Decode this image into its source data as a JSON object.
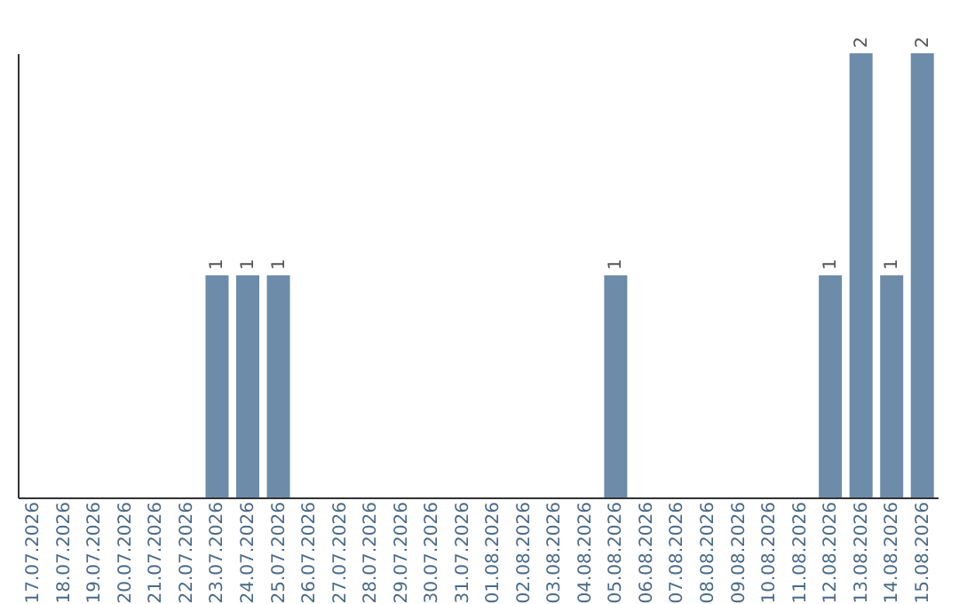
{
  "chart_data": {
    "type": "bar",
    "categories": [
      "17.07.2026",
      "18.07.2026",
      "19.07.2026",
      "20.07.2026",
      "21.07.2026",
      "22.07.2026",
      "23.07.2026",
      "24.07.2026",
      "25.07.2026",
      "26.07.2026",
      "27.07.2026",
      "28.07.2026",
      "29.07.2026",
      "30.07.2026",
      "31.07.2026",
      "01.08.2026",
      "02.08.2026",
      "03.08.2026",
      "04.08.2026",
      "05.08.2026",
      "06.08.2026",
      "07.08.2026",
      "08.08.2026",
      "09.08.2026",
      "10.08.2026",
      "11.08.2026",
      "12.08.2026",
      "13.08.2026",
      "14.08.2026",
      "15.08.2026"
    ],
    "values": [
      0,
      0,
      0,
      0,
      0,
      0,
      1,
      1,
      1,
      0,
      0,
      0,
      0,
      0,
      0,
      0,
      0,
      0,
      0,
      1,
      0,
      0,
      0,
      0,
      0,
      0,
      1,
      2,
      1,
      2
    ],
    "value_labels": [
      null,
      null,
      null,
      null,
      null,
      null,
      "1",
      "1",
      "1",
      null,
      null,
      null,
      null,
      null,
      null,
      null,
      null,
      null,
      null,
      "1",
      null,
      null,
      null,
      null,
      null,
      null,
      "1",
      "2",
      "1",
      "2"
    ],
    "color": "#6d8caa",
    "grid": false
  }
}
